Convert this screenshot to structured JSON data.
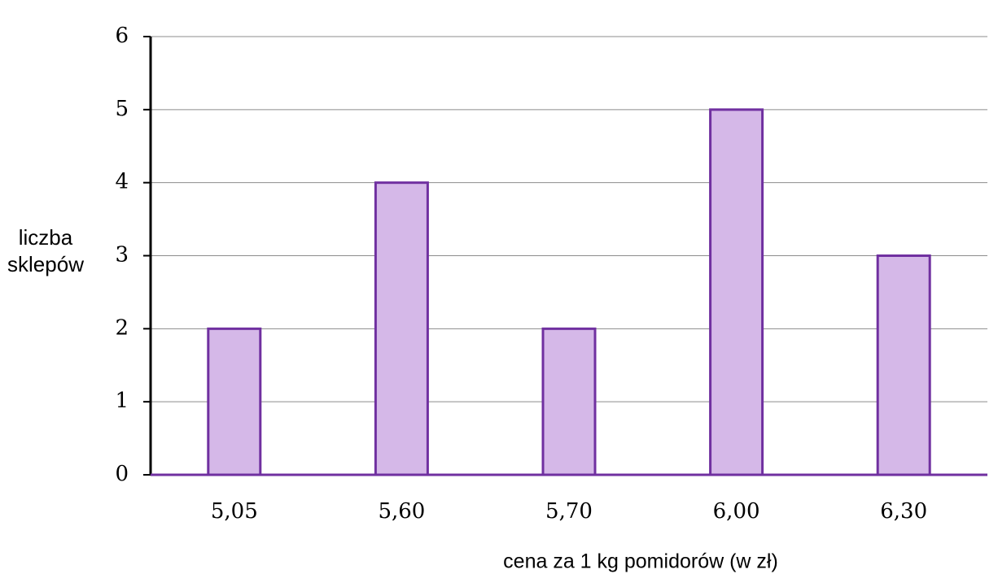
{
  "chart_data": {
    "type": "bar",
    "x_label": "cena za 1 kg pomidorów (w zł)",
    "y_label": "liczba sklepów",
    "categories": [
      "5,05",
      "5,60",
      "5,70",
      "6,00",
      "6,30"
    ],
    "values": [
      2,
      4,
      2,
      5,
      3
    ],
    "color": "#d5b8e8",
    "edge_color": "#7030a0",
    "ylim": [
      0,
      6
    ],
    "yticks": [
      0,
      1,
      2,
      3,
      4,
      5,
      6
    ],
    "grid": true
  }
}
